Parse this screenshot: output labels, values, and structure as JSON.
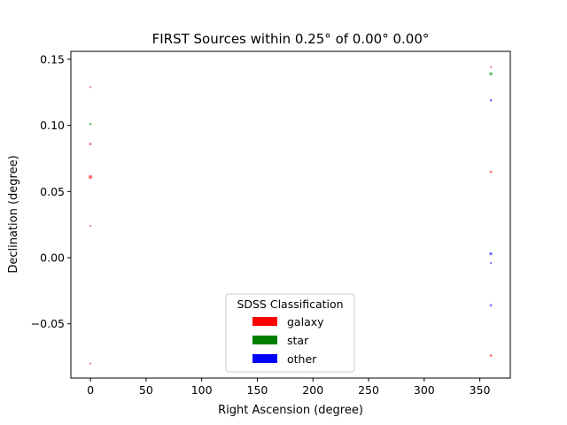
{
  "chart_data": {
    "type": "scatter",
    "title": "FIRST Sources within 0.25° of 0.00° 0.00°",
    "xlabel": "Right Ascension (degree)",
    "ylabel": "Declination (degree)",
    "xlim": [
      -17.6,
      377.4
    ],
    "ylim": [
      -0.091,
      0.156
    ],
    "x_ticks": [
      0,
      50,
      100,
      150,
      200,
      250,
      300,
      350
    ],
    "y_ticks": [
      -0.05,
      0.0,
      0.05,
      0.1,
      0.15
    ],
    "x_tick_labels": [
      "0",
      "50",
      "100",
      "150",
      "200",
      "250",
      "300",
      "350"
    ],
    "y_tick_labels": [
      "−0.05",
      "0.00",
      "0.05",
      "0.10",
      "0.15"
    ],
    "grid": false,
    "legend": {
      "title": "SDSS Classification",
      "placement": "lower center",
      "entries": [
        {
          "label": "galaxy",
          "color": "#ff0000"
        },
        {
          "label": "star",
          "color": "#008000"
        },
        {
          "label": "other",
          "color": "#0000ff"
        }
      ]
    },
    "series": [
      {
        "class": "galaxy",
        "color": "#ff0000",
        "points": [
          {
            "x": 0.0,
            "y": 0.129,
            "size": 1
          },
          {
            "x": 0.0,
            "y": 0.086,
            "size": 1.5
          },
          {
            "x": 0.0,
            "y": 0.061,
            "size": 4
          },
          {
            "x": 0.0,
            "y": 0.024,
            "size": 1
          },
          {
            "x": 0.0,
            "y": -0.08,
            "size": 1
          },
          {
            "x": 359.9,
            "y": 0.144,
            "size": 1
          },
          {
            "x": 359.9,
            "y": 0.065,
            "size": 1.5
          },
          {
            "x": 359.9,
            "y": -0.074,
            "size": 1.5
          }
        ]
      },
      {
        "class": "star",
        "color": "#008000",
        "points": [
          {
            "x": 0.0,
            "y": 0.101,
            "size": 1.5
          },
          {
            "x": 359.9,
            "y": 0.139,
            "size": 3
          }
        ]
      },
      {
        "class": "other",
        "color": "#0000ff",
        "points": [
          {
            "x": 359.9,
            "y": 0.119,
            "size": 1.5
          },
          {
            "x": 359.9,
            "y": 0.003,
            "size": 2.5
          },
          {
            "x": 359.9,
            "y": -0.004,
            "size": 1
          },
          {
            "x": 359.9,
            "y": -0.036,
            "size": 1.5
          }
        ]
      }
    ]
  }
}
